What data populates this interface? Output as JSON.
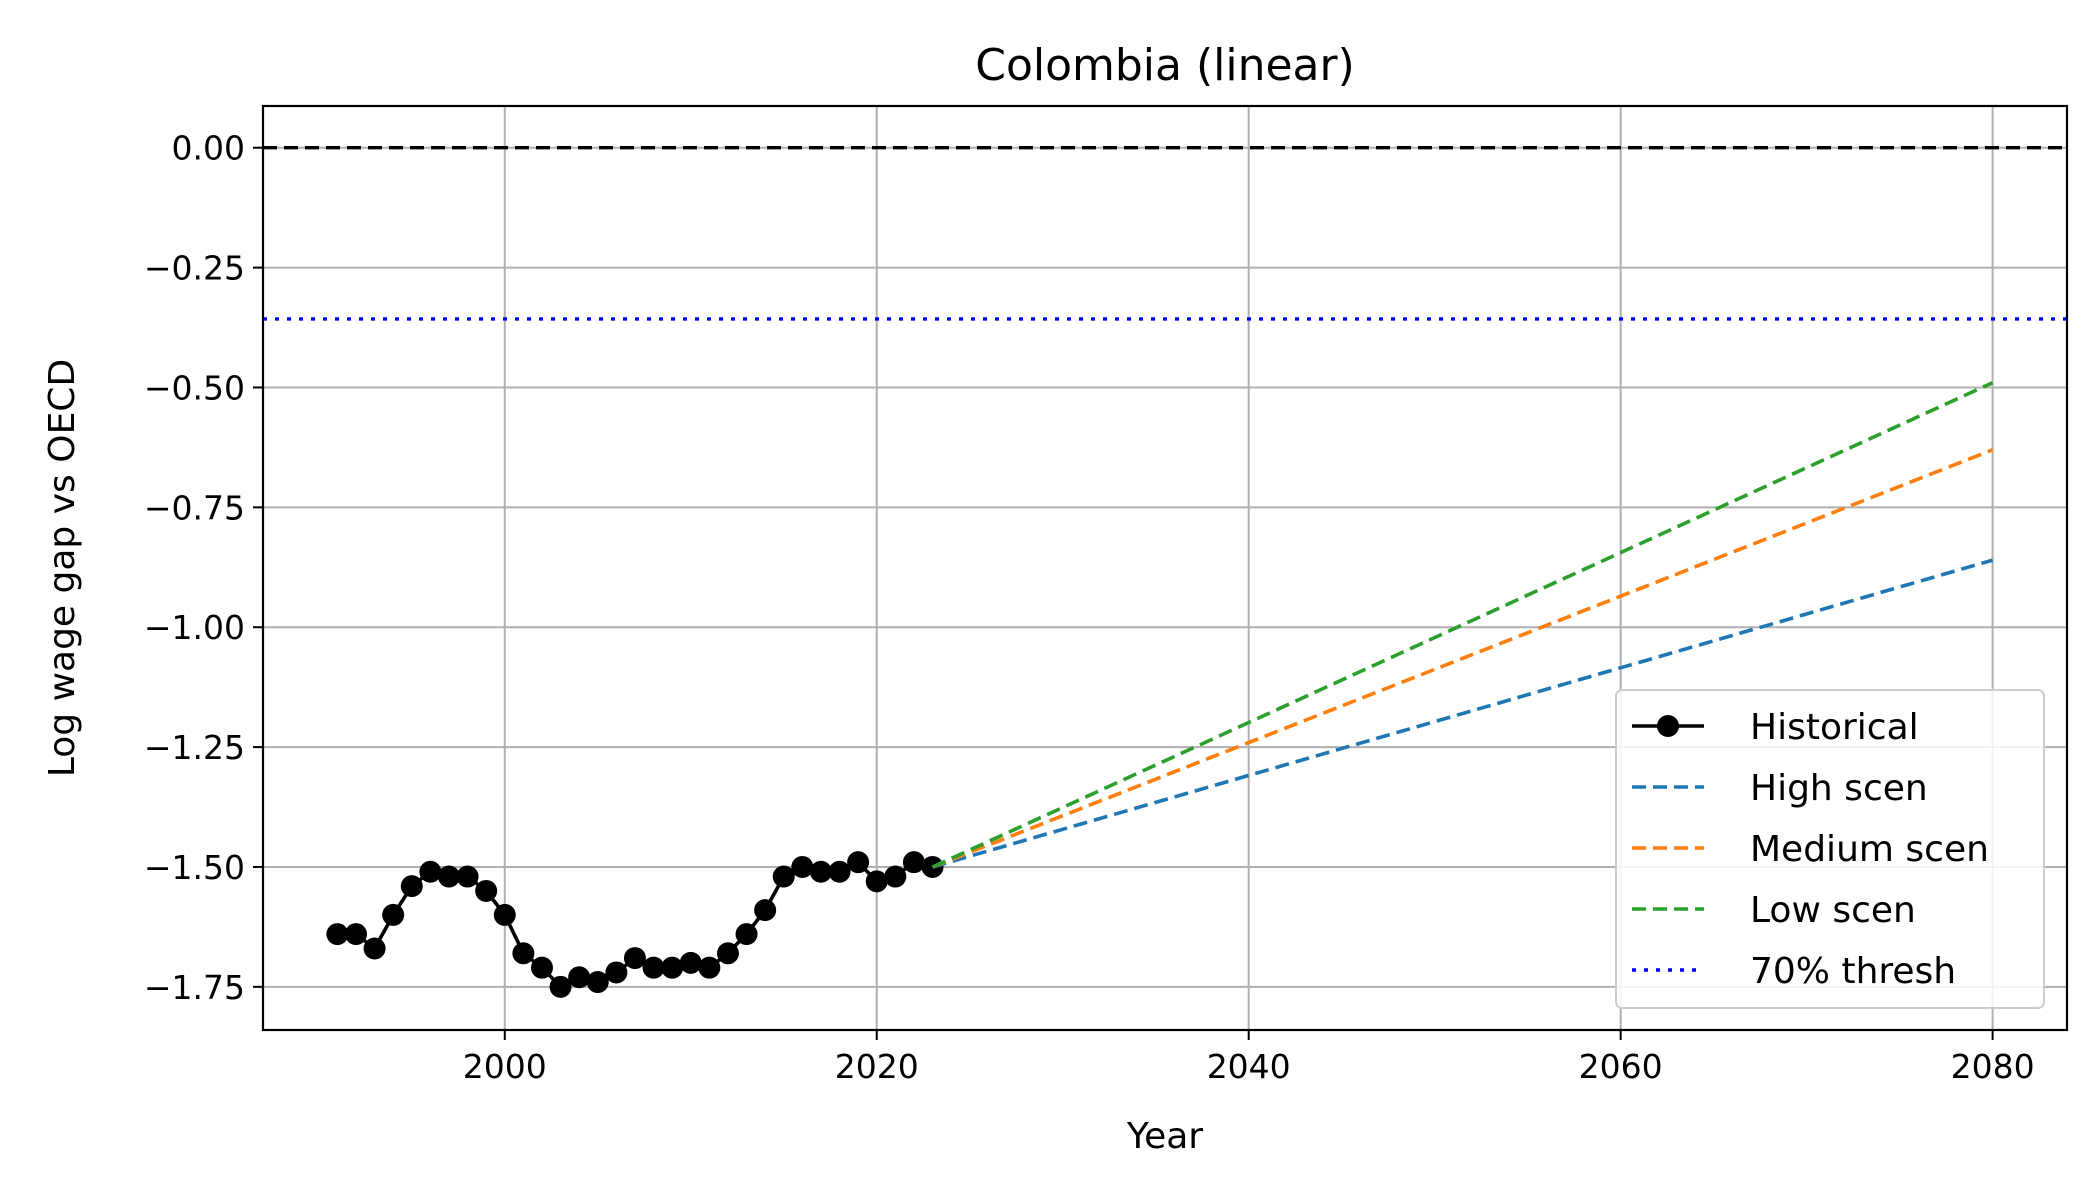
{
  "chart_data": {
    "type": "line",
    "title": "Colombia (linear)",
    "xlabel": "Year",
    "ylabel": "Log wage gap vs OECD",
    "xlim": [
      1987,
      2084
    ],
    "ylim": [
      -1.84,
      0.087
    ],
    "x_ticks": [
      2000,
      2020,
      2040,
      2060,
      2080
    ],
    "x_tick_labels": [
      "2000",
      "2020",
      "2040",
      "2060",
      "2080"
    ],
    "y_ticks": [
      0.0,
      -0.25,
      -0.5,
      -0.75,
      -1.0,
      -1.25,
      -1.5,
      -1.75
    ],
    "y_tick_labels": [
      "0.00",
      "−0.25",
      "−0.50",
      "−0.75",
      "−1.00",
      "−1.25",
      "−1.50",
      "−1.75"
    ],
    "grid": true,
    "legend_position": "lower-right",
    "reference_lines": [
      {
        "key": "zero",
        "y": 0.0,
        "color": "#000000",
        "style": "dashed"
      },
      {
        "key": "thresh",
        "y": -0.357,
        "color": "#0000ff",
        "style": "dotted"
      }
    ],
    "series": [
      {
        "key": "historical",
        "name": "Historical",
        "color": "#000000",
        "style": "solid",
        "marker": "circle",
        "x": [
          1991,
          1992,
          1993,
          1994,
          1995,
          1996,
          1997,
          1998,
          1999,
          2000,
          2001,
          2002,
          2003,
          2004,
          2005,
          2006,
          2007,
          2008,
          2009,
          2010,
          2011,
          2012,
          2013,
          2014,
          2015,
          2016,
          2017,
          2018,
          2019,
          2020,
          2021,
          2022,
          2023
        ],
        "y": [
          -1.64,
          -1.64,
          -1.67,
          -1.6,
          -1.54,
          -1.51,
          -1.52,
          -1.52,
          -1.55,
          -1.6,
          -1.68,
          -1.71,
          -1.75,
          -1.73,
          -1.74,
          -1.72,
          -1.69,
          -1.71,
          -1.71,
          -1.7,
          -1.71,
          -1.68,
          -1.64,
          -1.59,
          -1.52,
          -1.5,
          -1.51,
          -1.51,
          -1.49,
          -1.53,
          -1.52,
          -1.49,
          -1.5
        ]
      },
      {
        "key": "high",
        "name": "High scen",
        "color": "#1f77b4",
        "style": "dashed",
        "x": [
          2023,
          2080
        ],
        "y": [
          -1.5,
          -0.86
        ]
      },
      {
        "key": "medium",
        "name": "Medium scen",
        "color": "#ff7f0e",
        "style": "dashed",
        "x": [
          2023,
          2080
        ],
        "y": [
          -1.5,
          -0.63
        ]
      },
      {
        "key": "low",
        "name": "Low scen",
        "color": "#2ca02c",
        "style": "dashed",
        "x": [
          2023,
          2080
        ],
        "y": [
          -1.5,
          -0.49
        ]
      }
    ],
    "legend": [
      {
        "label": "Historical",
        "color": "#000000",
        "style": "solid",
        "marker": "circle"
      },
      {
        "label": "High scen",
        "color": "#1f77b4",
        "style": "dashed"
      },
      {
        "label": "Medium scen",
        "color": "#ff7f0e",
        "style": "dashed"
      },
      {
        "label": "Low scen",
        "color": "#2ca02c",
        "style": "dashed"
      },
      {
        "label": "70% thresh",
        "color": "#0000ff",
        "style": "dotted"
      }
    ]
  }
}
